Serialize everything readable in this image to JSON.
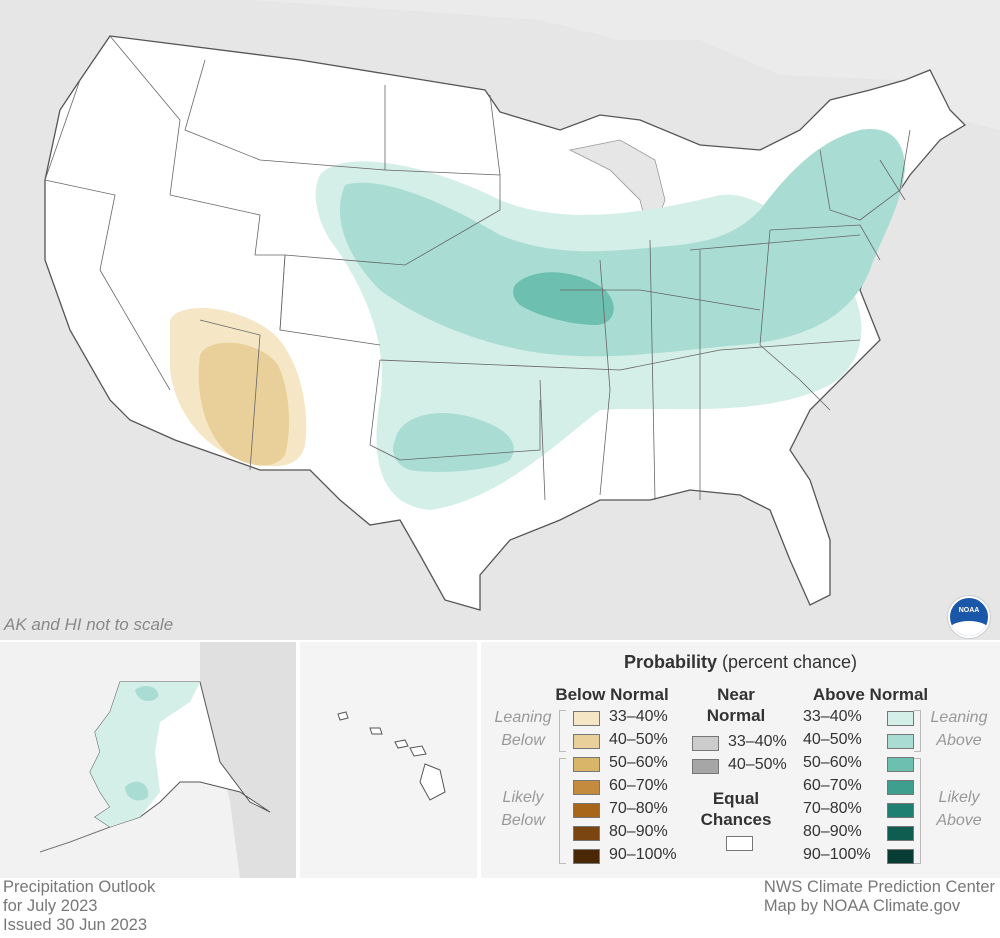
{
  "map": {
    "scale_note": "AK and HI not to scale",
    "logo_text": "NOAA",
    "logo_icon": "noaa-logo-icon",
    "colors": {
      "background_land": "#e6e6e6",
      "us_land": "#ffffff",
      "border": "#555555",
      "below_33_40": "#f5e7c5",
      "below_40_50": "#e9d09b",
      "above_33_40": "#d4eee8",
      "above_40_50": "#a9ddd3",
      "above_50_60": "#6dbfb0"
    },
    "outlook_regions": [
      {
        "category": "Above Normal",
        "range": "33-40%",
        "area": "Central Plains, Midwest, Southeast, Northeast"
      },
      {
        "category": "Above Normal",
        "range": "40-50%",
        "area": "Central Plains, Ohio Valley, Mid-Atlantic, Northeast, Oklahoma/Texas"
      },
      {
        "category": "Above Normal",
        "range": "50-60%",
        "area": "Missouri / Iowa"
      },
      {
        "category": "Below Normal",
        "range": "33-40%",
        "area": "Arizona"
      },
      {
        "category": "Below Normal",
        "range": "40-50%",
        "area": "Arizona"
      },
      {
        "category": "Above Normal",
        "range": "33-40%",
        "area": "Alaska (west and south)"
      },
      {
        "category": "Above Normal",
        "range": "40-50%",
        "area": "Alaska (small areas)"
      }
    ]
  },
  "legend": {
    "title_bold": "Probability",
    "title_rest": "(percent chance)",
    "below": {
      "heading": "Below Normal",
      "leaning": [
        "Leaning",
        "Below"
      ],
      "likely": [
        "Likely",
        "Below"
      ],
      "items": [
        {
          "label": "33–40%",
          "color": "#f5e7c5"
        },
        {
          "label": "40–50%",
          "color": "#e9d09b"
        },
        {
          "label": "50–60%",
          "color": "#d9b56a"
        },
        {
          "label": "60–70%",
          "color": "#c48a3e"
        },
        {
          "label": "70–80%",
          "color": "#a8661b"
        },
        {
          "label": "80–90%",
          "color": "#7a4510"
        },
        {
          "label": "90–100%",
          "color": "#4a2806"
        }
      ]
    },
    "near": {
      "heading": [
        "Near",
        "Normal"
      ],
      "items": [
        {
          "label": "33–40%",
          "color": "#cccccc"
        },
        {
          "label": "40–50%",
          "color": "#a6a6a6"
        }
      ],
      "equal_heading": [
        "Equal",
        "Chances"
      ],
      "equal_color": "#ffffff"
    },
    "above": {
      "heading": "Above Normal",
      "leaning": [
        "Leaning",
        "Above"
      ],
      "likely": [
        "Likely",
        "Above"
      ],
      "items": [
        {
          "label": "33–40%",
          "color": "#d4eee8"
        },
        {
          "label": "40–50%",
          "color": "#a9ddd3"
        },
        {
          "label": "50–60%",
          "color": "#6dbfb0"
        },
        {
          "label": "60–70%",
          "color": "#3e9f8f"
        },
        {
          "label": "70–80%",
          "color": "#1f7f70"
        },
        {
          "label": "80–90%",
          "color": "#0f5c50"
        },
        {
          "label": "90–100%",
          "color": "#073d34"
        }
      ]
    }
  },
  "footer": {
    "left": [
      "Precipitation Outlook",
      "for July 2023",
      "Issued 30 Jun 2023"
    ],
    "right": [
      "NWS Climate Prediction Center",
      "Map by NOAA Climate.gov"
    ]
  }
}
